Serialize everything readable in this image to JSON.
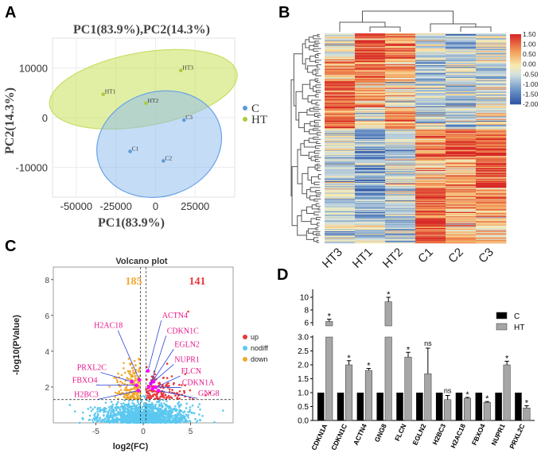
{
  "panels": {
    "A": {
      "letter": "A"
    },
    "B": {
      "letter": "B"
    },
    "C": {
      "letter": "C"
    },
    "D": {
      "letter": "D"
    }
  },
  "chart_data": [
    {
      "id": "pca",
      "type": "scatter",
      "title": "PC1(83.9%),PC2(14.3%)",
      "xlabel": "PC1(83.9%)",
      "ylabel": "PC2(14.3%)",
      "xlim": [
        -65000,
        50000
      ],
      "ylim": [
        -16000,
        16000
      ],
      "xticks": [
        -50000,
        -25000,
        0,
        25000
      ],
      "yticks": [
        -10000,
        0,
        10000
      ],
      "series": [
        {
          "name": "C",
          "color": "#5b9bd5",
          "points": [
            {
              "label": "C1",
              "x": -16000,
              "y": -6800
            },
            {
              "label": "C2",
              "x": 5000,
              "y": -8700
            },
            {
              "label": "C3",
              "x": 18000,
              "y": -500
            }
          ]
        },
        {
          "name": "HT",
          "color": "#a9cc3c",
          "points": [
            {
              "label": "HT1",
              "x": -33000,
              "y": 4700
            },
            {
              "label": "HT2",
              "x": -6000,
              "y": 2900
            },
            {
              "label": "HT3",
              "x": 16000,
              "y": 9500
            }
          ]
        }
      ]
    },
    {
      "id": "heatmap",
      "type": "heatmap",
      "columns": [
        "HT3",
        "HT1",
        "HT2",
        "C1",
        "C2",
        "C3"
      ],
      "colorbar": {
        "min": -2.0,
        "max": 1.5,
        "ticks": [
          "1.50",
          "1.00",
          "0.50",
          "0.00",
          "-0.50",
          "-1.00",
          "-1.50",
          "-2.00"
        ]
      },
      "row_blocks": [
        {
          "rows": 30,
          "values": [
            -0.3,
            1.2,
            0.9,
            -0.6,
            -0.9,
            -0.4
          ]
        },
        {
          "rows": 28,
          "values": [
            0.6,
            1.0,
            0.5,
            -0.9,
            -0.6,
            -0.7
          ]
        },
        {
          "rows": 30,
          "values": [
            1.2,
            0.4,
            -0.2,
            -0.4,
            -0.9,
            -0.5
          ]
        },
        {
          "rows": 26,
          "values": [
            0.9,
            -0.3,
            0.7,
            -0.6,
            -0.7,
            -0.4
          ]
        },
        {
          "rows": 36,
          "values": [
            -0.5,
            -1.2,
            -0.6,
            0.6,
            1.2,
            0.9
          ]
        },
        {
          "rows": 34,
          "values": [
            -0.7,
            -0.9,
            -0.5,
            0.2,
            0.6,
            1.3
          ]
        },
        {
          "rows": 36,
          "values": [
            -0.4,
            -1.1,
            -0.7,
            1.0,
            0.4,
            0.6
          ]
        },
        {
          "rows": 30,
          "values": [
            -0.6,
            -0.4,
            -0.9,
            1.2,
            0.5,
            0.2
          ]
        }
      ]
    },
    {
      "id": "volcano",
      "type": "scatter",
      "title": "Volcano plot",
      "xlabel": "log2(FC)",
      "ylabel": "-log10(PValue)",
      "xlim": [
        -9.5,
        9.5
      ],
      "ylim": [
        0,
        8.7
      ],
      "xticks": [
        -5,
        0,
        5
      ],
      "yticks": [
        2,
        4,
        6,
        8
      ],
      "counts": {
        "down": "185",
        "up": "141"
      },
      "legend": [
        {
          "name": "up",
          "color": "#e8383d"
        },
        {
          "name": "nodiff",
          "color": "#5bc8f0"
        },
        {
          "name": "down",
          "color": "#f0a830"
        }
      ],
      "thresholds": {
        "pvalue_line": 1.3,
        "fc_lines": [
          -0.3,
          0.3
        ]
      },
      "labeled_genes": [
        {
          "gene": "ACTN4",
          "x": 0.5,
          "y": 2.9
        },
        {
          "gene": "CDKN1C",
          "x": 0.8,
          "y": 2.2
        },
        {
          "gene": "EGLN2",
          "x": 0.6,
          "y": 2.0
        },
        {
          "gene": "NUPR1",
          "x": 1.1,
          "y": 2.3
        },
        {
          "gene": "FLCN",
          "x": 1.0,
          "y": 1.9
        },
        {
          "gene": "CDKN1A",
          "x": 1.3,
          "y": 2.0
        },
        {
          "gene": "GNG8",
          "x": 1.6,
          "y": 1.8
        },
        {
          "gene": "H2AC18",
          "x": -0.4,
          "y": 2.4
        },
        {
          "gene": "PRXL2C",
          "x": -1.2,
          "y": 2.3
        },
        {
          "gene": "FBXO4",
          "x": -0.7,
          "y": 2.1
        },
        {
          "gene": "H2BC3",
          "x": -0.5,
          "y": 1.8
        }
      ],
      "label_text_positions": [
        {
          "gene": "ACTN4",
          "tx": 2.0,
          "ty": 5.85
        },
        {
          "gene": "CDKN1C",
          "tx": 2.5,
          "ty": 5.0
        },
        {
          "gene": "EGLN2",
          "tx": 3.3,
          "ty": 4.25
        },
        {
          "gene": "NUPR1",
          "tx": 3.3,
          "ty": 3.4
        },
        {
          "gene": "FLCN",
          "tx": 4.0,
          "ty": 2.75
        },
        {
          "gene": "CDKN1A",
          "tx": 4.1,
          "ty": 2.1
        },
        {
          "gene": "GNG8",
          "tx": 5.8,
          "ty": 1.5
        },
        {
          "gene": "H2AC18",
          "tx": -5.2,
          "ty": 5.3
        },
        {
          "gene": "PRXL2C",
          "tx": -7.0,
          "ty": 2.95
        },
        {
          "gene": "FBXO4",
          "tx": -7.5,
          "ty": 2.25
        },
        {
          "gene": "H2BC3",
          "tx": -7.3,
          "ty": 1.45
        }
      ]
    },
    {
      "id": "bars",
      "type": "bar",
      "categories": [
        "CDKN1A",
        "CDKN1C",
        "ACTN4",
        "GNG8",
        "FLCN",
        "EGLN2",
        "H2BC3",
        "H2AC18",
        "FBXO4",
        "NUPR1",
        "PRXL2C"
      ],
      "series": [
        {
          "name": "C",
          "color": "#000000",
          "values": [
            1,
            1,
            1,
            1,
            1,
            1,
            1,
            1,
            1,
            1,
            1
          ]
        },
        {
          "name": "HT",
          "color": "#a6a6a6",
          "values": [
            6.2,
            2.0,
            1.8,
            9.3,
            2.28,
            1.68,
            0.75,
            0.8,
            0.65,
            2.0,
            0.45
          ],
          "errors": [
            0.35,
            0.15,
            0.07,
            0.7,
            0.17,
            0.92,
            0.15,
            0.03,
            0.03,
            0.13,
            0.08
          ]
        }
      ],
      "significance": [
        "*",
        "*",
        "*",
        "*",
        "*",
        "ns",
        "ns",
        "*",
        "*",
        "*",
        "*"
      ],
      "yaxis_lower": {
        "range": [
          0,
          3.0
        ],
        "ticks": [
          "0.0",
          "0.5",
          "1.0",
          "1.5",
          "2.0",
          "2.5",
          "3.0"
        ]
      },
      "yaxis_upper": {
        "range": [
          6,
          11
        ],
        "ticks": [
          "6",
          "8",
          "10"
        ]
      },
      "legend": [
        "C",
        "HT"
      ]
    }
  ]
}
